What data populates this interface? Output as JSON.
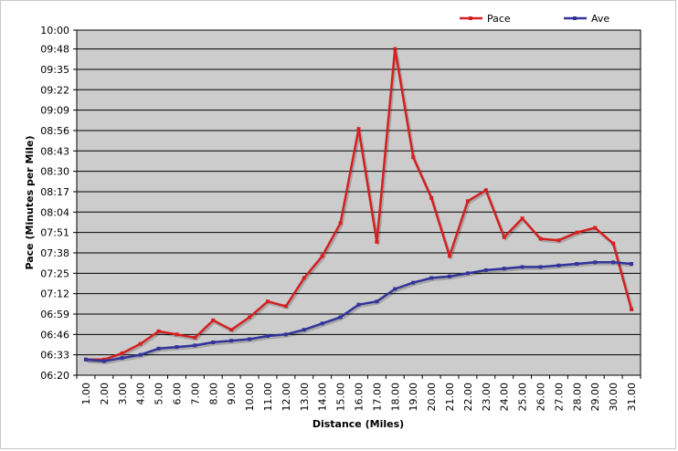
{
  "chart_data": {
    "type": "line",
    "xlabel": "Distance (Miles)",
    "ylabel": "Pace (Minutes per Mile)",
    "legend_position": "top-right",
    "grid": true,
    "ylim": [
      "06:20",
      "10:00"
    ],
    "y_ticks": [
      "06:20",
      "06:33",
      "06:46",
      "06:59",
      "07:12",
      "07:25",
      "07:38",
      "07:51",
      "08:04",
      "08:17",
      "08:30",
      "08:43",
      "08:56",
      "09:09",
      "09:22",
      "09:35",
      "09:48",
      "10:00"
    ],
    "categories": [
      "1.00",
      "2.00",
      "3.00",
      "4.00",
      "5.00",
      "6.00",
      "7.00",
      "8.00",
      "9.00",
      "10.00",
      "11.00",
      "12.00",
      "13.00",
      "14.00",
      "15.00",
      "16.00",
      "17.00",
      "18.00",
      "19.00",
      "20.00",
      "21.00",
      "22.00",
      "23.00",
      "24.00",
      "25.00",
      "26.00",
      "27.00",
      "28.00",
      "29.00",
      "30.00",
      "31.00"
    ],
    "series": [
      {
        "name": "Pace",
        "color": "#d42020",
        "values": [
          "06:30",
          "06:30",
          "06:34",
          "06:40",
          "06:48",
          "06:46",
          "06:44",
          "06:55",
          "06:49",
          "06:57",
          "07:07",
          "07:04",
          "07:22",
          "07:36",
          "07:57",
          "08:57",
          "07:45",
          "09:48",
          "08:39",
          "08:13",
          "07:36",
          "08:11",
          "08:18",
          "07:48",
          "08:00",
          "07:47",
          "07:46",
          "07:51",
          "07:54",
          "07:44",
          "07:02"
        ]
      },
      {
        "name": "Ave",
        "color": "#33339a",
        "values": [
          "06:30",
          "06:29",
          "06:31",
          "06:33",
          "06:37",
          "06:38",
          "06:39",
          "06:41",
          "06:42",
          "06:43",
          "06:45",
          "06:46",
          "06:49",
          "06:53",
          "06:57",
          "07:05",
          "07:07",
          "07:15",
          "07:19",
          "07:22",
          "07:23",
          "07:25",
          "07:27",
          "07:28",
          "07:29",
          "07:29",
          "07:30",
          "07:31",
          "07:32",
          "07:32",
          "07:31"
        ]
      }
    ]
  }
}
